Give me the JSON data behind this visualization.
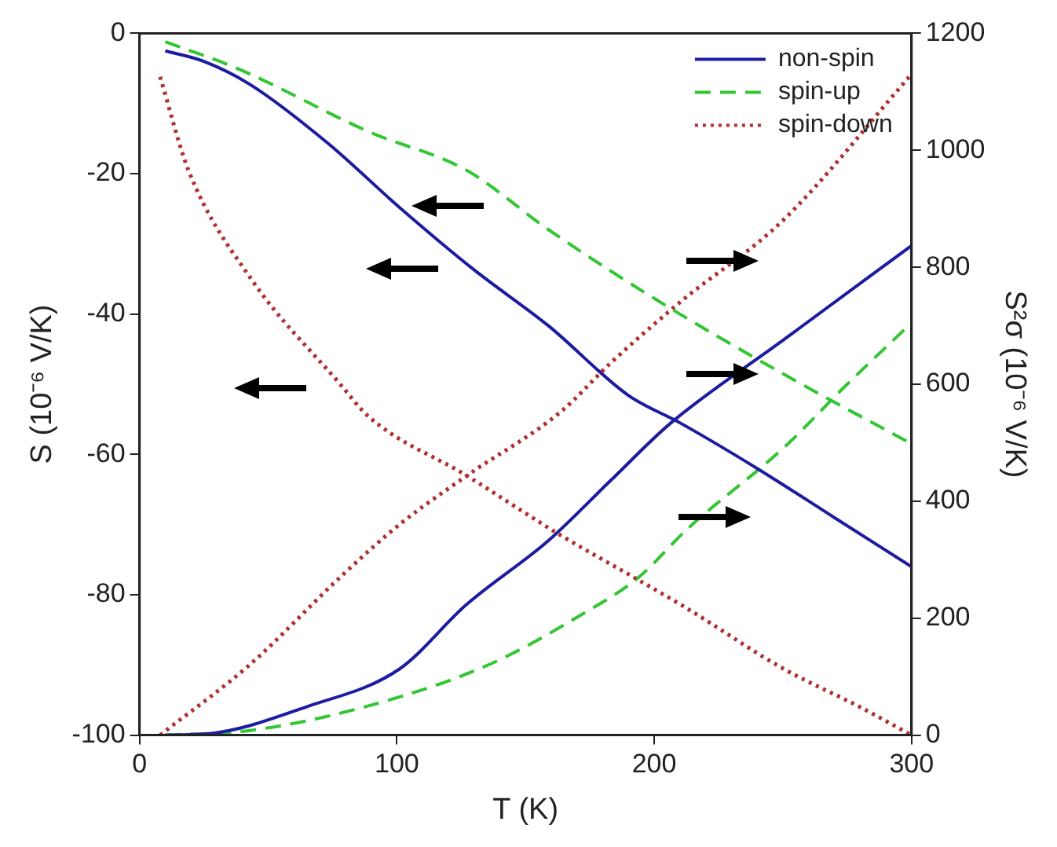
{
  "chart_data": {
    "type": "line",
    "xlabel": "T (K)",
    "ylabel": "S (10⁻⁶ V/K)",
    "y2label": "S²σ (10⁻⁶ V/K)",
    "xlim": [
      0,
      300
    ],
    "xticks": [
      0,
      100,
      200,
      300
    ],
    "ylim": [
      -100,
      0
    ],
    "yticks": [
      -100,
      -80,
      -60,
      -40,
      -20,
      0
    ],
    "y2lim": [
      0,
      1200
    ],
    "y2ticks": [
      0,
      200,
      400,
      600,
      800,
      1000,
      1200
    ],
    "grid": false,
    "legend": "top right",
    "marker": "none",
    "series": [
      {
        "name": "non-spin",
        "color": "#1c1ca0",
        "line_style": "solid",
        "x": [
          10,
          25,
          43,
          73,
          101,
          130,
          159,
          190,
          210,
          240,
          270,
          300
        ],
        "values": [
          -2.5,
          -4,
          -7.3,
          -15.6,
          -24.8,
          -33.7,
          -41.7,
          -51.6,
          -55.5,
          -62,
          -69,
          -76
        ]
      },
      {
        "name": "spin-up",
        "color": "#33c633",
        "line_style": "dashed",
        "x": [
          10,
          38,
          89,
          127,
          159,
          201,
          250,
          300
        ],
        "values": [
          -1.2,
          -5,
          -14,
          -19.5,
          -28,
          -38,
          -48.5,
          -58.5
        ]
      },
      {
        "name": "spin-down",
        "color": "#b03030",
        "line_style": "dotted",
        "x": [
          8,
          19,
          43,
          78,
          89,
          127,
          164,
          192,
          213,
          250,
          280,
          300
        ],
        "values": [
          -6.2,
          -19.5,
          -34.8,
          -50,
          -54.6,
          -63,
          -71.6,
          -77.5,
          -82,
          -90.5,
          -96,
          -100
        ]
      },
      {
        "color": "#1c1ca0",
        "line_style": "solid",
        "axis": "y2",
        "x": [
          10,
          26,
          66,
          101,
          127,
          159,
          183,
          206,
          250,
          300
        ],
        "values": [
          0,
          2,
          50,
          113,
          223,
          333,
          435,
          532,
          675,
          837
        ]
      },
      {
        "color": "#33c633",
        "line_style": "dashed",
        "axis": "y2",
        "x": [
          10,
          43,
          89,
          136,
          171,
          194,
          213,
          250,
          275,
          300
        ],
        "values": [
          0,
          8,
          50,
          121,
          204,
          270,
          353,
          490,
          600,
          705
        ]
      },
      {
        "color": "#b03030",
        "line_style": "dotted",
        "axis": "y2",
        "x": [
          8,
          43,
          78,
          101,
          127,
          164,
          183,
          210,
          250,
          300
        ],
        "values": [
          0,
          121,
          270,
          360,
          443,
          554,
          636,
          740,
          880,
          1130
        ]
      }
    ]
  }
}
